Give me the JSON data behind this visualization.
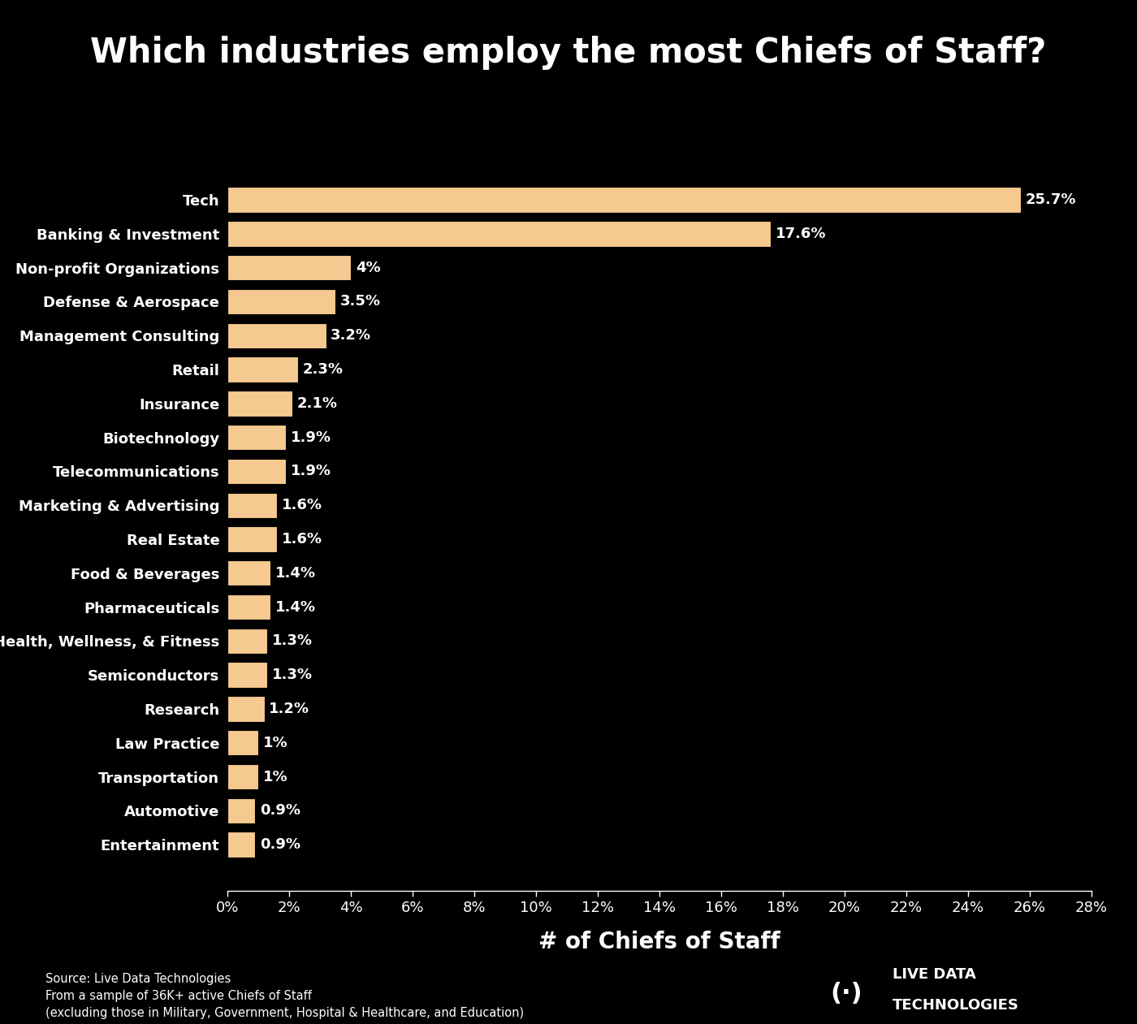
{
  "title": "Which industries employ the most Chiefs of Staff?",
  "xlabel": "# of Chiefs of Staff",
  "categories": [
    "Tech",
    "Banking & Investment",
    "Non-profit Organizations",
    "Defense & Aerospace",
    "Management Consulting",
    "Retail",
    "Insurance",
    "Biotechnology",
    "Telecommunications",
    "Marketing & Advertising",
    "Real Estate",
    "Food & Beverages",
    "Pharmaceuticals",
    "Health, Wellness, & Fitness",
    "Semiconductors",
    "Research",
    "Law Practice",
    "Transportation",
    "Automotive",
    "Entertainment"
  ],
  "values": [
    25.7,
    17.6,
    4.0,
    3.5,
    3.2,
    2.3,
    2.1,
    1.9,
    1.9,
    1.6,
    1.6,
    1.4,
    1.4,
    1.3,
    1.3,
    1.2,
    1.0,
    1.0,
    0.9,
    0.9
  ],
  "labels": [
    "25.7%",
    "17.6%",
    "4%",
    "3.5%",
    "3.2%",
    "2.3%",
    "2.1%",
    "1.9%",
    "1.9%",
    "1.6%",
    "1.6%",
    "1.4%",
    "1.4%",
    "1.3%",
    "1.3%",
    "1.2%",
    "1%",
    "1%",
    "0.9%",
    "0.9%"
  ],
  "bar_color": "#f5c990",
  "bar_edge_color": "#000000",
  "background_color": "#000000",
  "text_color": "#ffffff",
  "title_fontsize": 30,
  "label_fontsize": 13,
  "tick_fontsize": 13,
  "xlabel_fontsize": 20,
  "xlim": [
    0,
    28
  ],
  "xticks": [
    0,
    2,
    4,
    6,
    8,
    10,
    12,
    14,
    16,
    18,
    20,
    22,
    24,
    26,
    28
  ],
  "source_text": "Source: Live Data Technologies\nFrom a sample of 36K+ active Chiefs of Staff\n(excluding those in Military, Government, Hospital & Healthcare, and Education)",
  "logo_text_line1": "(·) LIVE DATA",
  "logo_text_line2": "TECHNOLOGIES"
}
